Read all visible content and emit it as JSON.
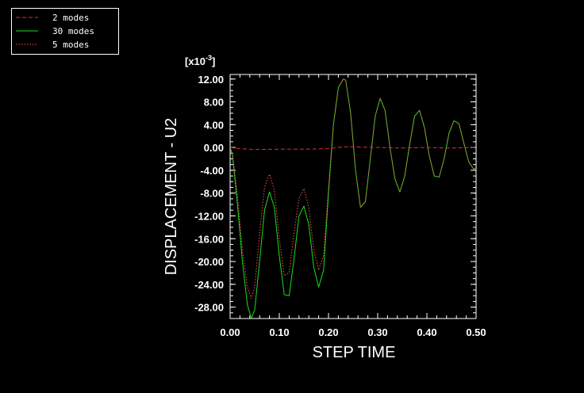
{
  "chart_data": {
    "type": "line",
    "xlabel": "STEP TIME",
    "ylabel": "DISPLACEMENT - U2",
    "y_multiplier": "[x10",
    "y_multiplier_exp": "-3",
    "y_multiplier_close": "]",
    "xlim": [
      0.0,
      0.5
    ],
    "ylim": [
      -30.0,
      12.8
    ],
    "x_ticks": [
      0.0,
      0.1,
      0.2,
      0.3,
      0.4,
      0.5
    ],
    "x_tick_labels": [
      "0.00",
      "0.10",
      "0.20",
      "0.30",
      "0.40",
      "0.50"
    ],
    "y_ticks": [
      12,
      8,
      4,
      0,
      -4,
      -8,
      -12,
      -16,
      -20,
      -24,
      -28
    ],
    "y_tick_labels": [
      "12.00",
      "8.00",
      "4.00",
      "0.00",
      "-4.00",
      "-8.00",
      "-12.00",
      "-16.00",
      "-20.00",
      "-24.00",
      "-28.00"
    ],
    "grid": false,
    "legend_position": "top-left, outside plot",
    "series": [
      {
        "name": "2 modes",
        "color": "#e03030",
        "style": "dashed",
        "x": [
          0.0,
          0.02,
          0.05,
          0.1,
          0.15,
          0.2,
          0.23,
          0.25,
          0.3,
          0.35,
          0.4,
          0.45,
          0.5
        ],
        "y": [
          0.0,
          -0.2,
          -0.35,
          -0.3,
          -0.3,
          -0.2,
          0.1,
          0.1,
          0.0,
          -0.1,
          0.0,
          -0.1,
          0.0
        ]
      },
      {
        "name": "30 modes",
        "color": "#18e018",
        "style": "solid",
        "x": [
          0.0,
          0.005,
          0.015,
          0.025,
          0.035,
          0.043,
          0.05,
          0.06,
          0.07,
          0.08,
          0.09,
          0.1,
          0.11,
          0.12,
          0.13,
          0.14,
          0.15,
          0.16,
          0.17,
          0.18,
          0.19,
          0.2,
          0.21,
          0.22,
          0.23,
          0.235,
          0.245,
          0.255,
          0.265,
          0.275,
          0.285,
          0.295,
          0.305,
          0.315,
          0.325,
          0.335,
          0.345,
          0.355,
          0.365,
          0.375,
          0.385,
          0.395,
          0.405,
          0.415,
          0.425,
          0.435,
          0.445,
          0.455,
          0.465,
          0.475,
          0.485,
          0.495,
          0.5
        ],
        "y": [
          0.0,
          -1.5,
          -10.0,
          -20.0,
          -27.5,
          -30.0,
          -28.5,
          -20.0,
          -11.0,
          -7.8,
          -10.5,
          -19.0,
          -25.8,
          -26.0,
          -19.5,
          -12.0,
          -10.3,
          -13.5,
          -21.0,
          -24.5,
          -21.5,
          -8.0,
          4.0,
          10.5,
          12.0,
          11.8,
          6.0,
          -4.0,
          -10.5,
          -9.5,
          -2.0,
          5.5,
          8.6,
          6.5,
          0.0,
          -5.5,
          -7.8,
          -5.0,
          0.5,
          5.5,
          6.5,
          3.5,
          -1.5,
          -5.0,
          -5.2,
          -2.0,
          2.5,
          4.7,
          4.2,
          0.8,
          -2.5,
          -3.8,
          -3.5
        ]
      },
      {
        "name": "5 modes",
        "color": "#ff5050",
        "style": "dotted",
        "x": [
          0.0,
          0.005,
          0.015,
          0.025,
          0.035,
          0.043,
          0.05,
          0.06,
          0.07,
          0.08,
          0.09,
          0.1,
          0.11,
          0.12,
          0.13,
          0.14,
          0.15,
          0.16,
          0.17,
          0.18,
          0.19,
          0.2,
          0.21,
          0.22,
          0.23,
          0.235,
          0.245,
          0.255,
          0.265,
          0.275,
          0.285,
          0.295,
          0.305,
          0.315,
          0.325,
          0.335,
          0.345,
          0.355,
          0.365,
          0.375,
          0.385,
          0.395,
          0.405,
          0.415,
          0.425,
          0.435,
          0.445,
          0.455,
          0.465,
          0.475,
          0.485,
          0.495,
          0.5
        ],
        "y": [
          0.0,
          -1.2,
          -8.5,
          -18.0,
          -24.5,
          -26.5,
          -24.5,
          -15.0,
          -7.0,
          -4.7,
          -7.5,
          -16.0,
          -22.5,
          -22.0,
          -15.0,
          -9.0,
          -7.2,
          -10.5,
          -18.0,
          -21.5,
          -19.0,
          -7.0,
          4.0,
          10.5,
          12.0,
          11.8,
          6.0,
          -4.0,
          -10.5,
          -9.5,
          -2.0,
          5.5,
          8.6,
          6.5,
          0.0,
          -5.5,
          -7.8,
          -5.0,
          0.5,
          5.5,
          6.5,
          3.5,
          -1.5,
          -5.0,
          -5.2,
          -2.0,
          2.5,
          4.7,
          4.2,
          0.8,
          -2.5,
          -3.8,
          -3.5
        ]
      }
    ],
    "legend_order": [
      0,
      1,
      2
    ]
  }
}
